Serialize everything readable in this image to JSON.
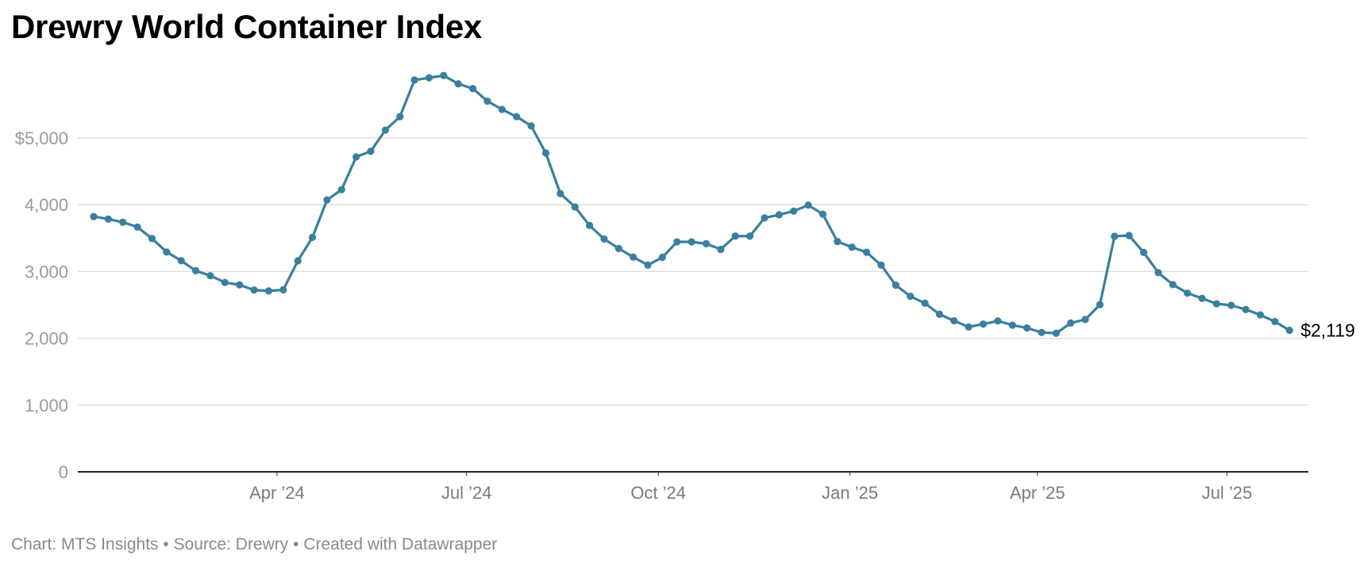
{
  "chart_data": {
    "type": "line",
    "title": "Drewry World Container Index",
    "x_start": "2024-01-04",
    "interval_days": 7,
    "y_tick_values": [
      0,
      1000,
      2000,
      3000,
      4000,
      5000
    ],
    "y_tick_labels": [
      "0",
      "1,000",
      "2,000",
      "3,000",
      "4,000",
      "$5,000"
    ],
    "ylim": [
      0,
      6000
    ],
    "x_tick_labels": [
      "Apr ’24",
      "Jul ’24",
      "Oct ’24",
      "Jan ’25",
      "Apr ’25",
      "Jul ’25"
    ],
    "x_tick_dates": [
      "2024-04-01",
      "2024-07-01",
      "2024-10-01",
      "2025-01-01",
      "2025-04-01",
      "2025-07-01"
    ],
    "grid": true,
    "legend": "none",
    "end_label": "$2,119",
    "color": "#3a7f9e",
    "series": [
      {
        "values": [
          3823,
          3786,
          3738,
          3665,
          3494,
          3292,
          3162,
          3012,
          2937,
          2836,
          2800,
          2723,
          2709,
          2726,
          3159,
          3511,
          4072,
          4226,
          4716,
          4801,
          5117,
          5319,
          5868,
          5901,
          5936,
          5811,
          5740,
          5551,
          5428,
          5319,
          5181,
          4775,
          4168,
          3967,
          3690,
          3488,
          3345,
          3216,
          3097,
          3213,
          3444,
          3444,
          3416,
          3332,
          3531,
          3530,
          3803,
          3850,
          3905,
          3994,
          3859,
          3449,
          3364,
          3288,
          3096,
          2795,
          2629,
          2525,
          2359,
          2262,
          2169,
          2213,
          2260,
          2196,
          2155,
          2087,
          2076,
          2228,
          2282,
          2505,
          3527,
          3539,
          3286,
          2983,
          2804,
          2676,
          2598,
          2517,
          2494,
          2430,
          2350,
          2250,
          2119
        ]
      }
    ]
  },
  "footer": {
    "text": "Chart: MTS Insights • Source: Drewry • Created with Datawrapper"
  }
}
